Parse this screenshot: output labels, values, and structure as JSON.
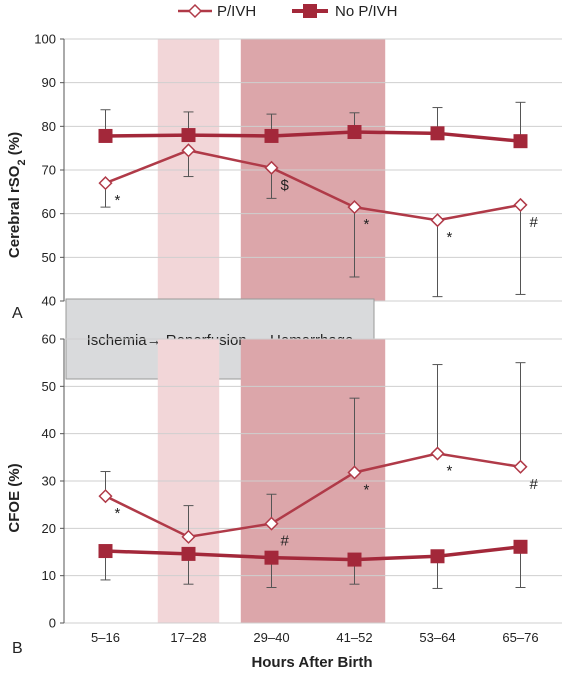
{
  "legend": {
    "pivh": "P/IVH",
    "no_pivh": "No P/IVH"
  },
  "x_title": "Hours After Birth",
  "box_text": "Ischemia→ Reperfusion → Hemorrhage",
  "colors": {
    "series": "#b03a48",
    "series_dark": "#a3283a",
    "light_band": "#f2d6d8",
    "dark_band": "#dca6aa",
    "box_fill": "#d9dadc",
    "grid": "#cfcfcf",
    "errorbar": "#555555"
  },
  "chart_data": [
    {
      "type": "line",
      "panel_label": "A",
      "ylabel": "Cerebral rSO2 (%)",
      "ylim": [
        40,
        100
      ],
      "yticks": [
        40,
        50,
        60,
        70,
        80,
        90,
        100
      ],
      "grid": true,
      "categories": [
        "5–16",
        "17–28",
        "29–40",
        "41–52",
        "53–64",
        "65–76"
      ],
      "shaded_regions": [
        {
          "from": "17–28",
          "to": "17–28",
          "shade": "light"
        },
        {
          "from": "29–40",
          "to": "41–52",
          "shade": "dark"
        }
      ],
      "series": [
        {
          "name": "P/IVH",
          "marker": "open-diamond",
          "values": [
            67,
            74.5,
            70.5,
            61.5,
            58.5,
            62
          ],
          "err_low": [
            61.5,
            68.5,
            63.5,
            45.5,
            41,
            41.5
          ],
          "err_high": [
            null,
            null,
            null,
            null,
            null,
            null
          ],
          "annotations": [
            "*",
            "",
            "$",
            "*",
            "*",
            "#"
          ]
        },
        {
          "name": "No P/IVH",
          "marker": "filled-square",
          "values": [
            77.8,
            78,
            77.8,
            78.7,
            78.4,
            76.6
          ],
          "err_low": [
            null,
            null,
            null,
            null,
            null,
            null
          ],
          "err_high": [
            83.8,
            83.3,
            82.8,
            83.1,
            84.3,
            85.5
          ],
          "annotations": [
            "",
            "",
            "",
            "",
            "",
            ""
          ]
        }
      ]
    },
    {
      "type": "line",
      "panel_label": "B",
      "ylabel": "CFOE (%)",
      "ylim": [
        0,
        60
      ],
      "yticks": [
        0,
        10,
        20,
        30,
        40,
        50,
        60
      ],
      "grid": true,
      "categories": [
        "5–16",
        "17–28",
        "29–40",
        "41–52",
        "53–64",
        "65–76"
      ],
      "shaded_regions": [
        {
          "from": "17–28",
          "to": "17–28",
          "shade": "light"
        },
        {
          "from": "29–40",
          "to": "41–52",
          "shade": "dark"
        }
      ],
      "series": [
        {
          "name": "P/IVH",
          "marker": "open-diamond",
          "values": [
            26.8,
            18.2,
            21,
            31.8,
            35.8,
            33
          ],
          "err_low": [
            null,
            null,
            null,
            null,
            null,
            null
          ],
          "err_high": [
            32,
            24.8,
            27.2,
            47.5,
            54.6,
            55
          ],
          "annotations": [
            "*",
            "",
            "#",
            "*",
            "*",
            "#"
          ]
        },
        {
          "name": "No P/IVH",
          "marker": "filled-square",
          "values": [
            15.2,
            14.6,
            13.8,
            13.4,
            14.1,
            16.1
          ],
          "err_low": [
            9.1,
            8.2,
            7.5,
            8.2,
            7.3,
            7.5
          ],
          "err_high": [
            null,
            null,
            null,
            null,
            null,
            null
          ],
          "annotations": [
            "",
            "",
            "",
            "",
            "",
            ""
          ]
        }
      ]
    }
  ]
}
